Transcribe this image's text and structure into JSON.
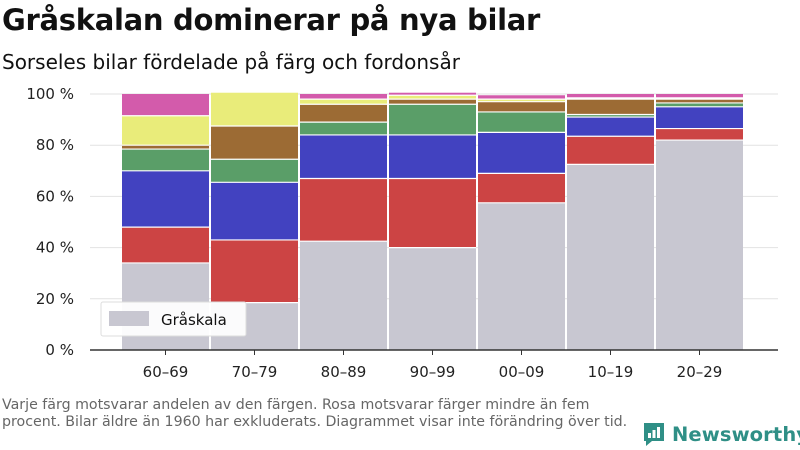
{
  "title": "Gråskalan dominerar på nya bilar",
  "subtitle": "Sorseles bilar fördelade på färg och fordonsår",
  "note": "Varje färg motsvarar andelen av den färgen. Rosa motsvarar färger mindre än fem procent. Bilar äldre än 1960 har exkluderats. Diagrammet visar inte förändring över tid.",
  "brand": {
    "name": "Newsworthy",
    "icon": "newsworthy-logo-icon"
  },
  "chart_data": {
    "type": "bar",
    "stacked": true,
    "categories": [
      "60–69",
      "70–79",
      "80–89",
      "90–99",
      "00–09",
      "10–19",
      "20–29"
    ],
    "y_tick_labels": [
      "0 %",
      "20 %",
      "40 %",
      "60 %",
      "80 %",
      "100 %"
    ],
    "ylim": [
      0,
      100
    ],
    "grid": true,
    "legend": {
      "label": "Gråskala",
      "placement": "bottom-left"
    },
    "series": [
      {
        "name": "Gråskala",
        "color": "#c8c7d1",
        "values": [
          34,
          18.5,
          42.5,
          40,
          57.5,
          72.5,
          82
        ]
      },
      {
        "color": "#cc4444",
        "values": [
          14,
          24.5,
          24.5,
          27,
          11.5,
          11,
          4.5
        ]
      },
      {
        "color": "#4242c0",
        "values": [
          22,
          22.5,
          17,
          17,
          16,
          7.5,
          8.5
        ]
      },
      {
        "color": "#5a9e68",
        "values": [
          8.5,
          9,
          5,
          12,
          8,
          1,
          1.5
        ]
      },
      {
        "color": "#9c6b34",
        "values": [
          1.5,
          13,
          7,
          2,
          4,
          6,
          1.5
        ]
      },
      {
        "color": "#e9ec7a",
        "values": [
          11.5,
          13,
          2,
          1.5,
          1,
          0.5,
          0.5
        ]
      },
      {
        "color": "#d35bab",
        "values": [
          8.5,
          0,
          2,
          1,
          1.5,
          1.5,
          1.5
        ]
      }
    ]
  }
}
